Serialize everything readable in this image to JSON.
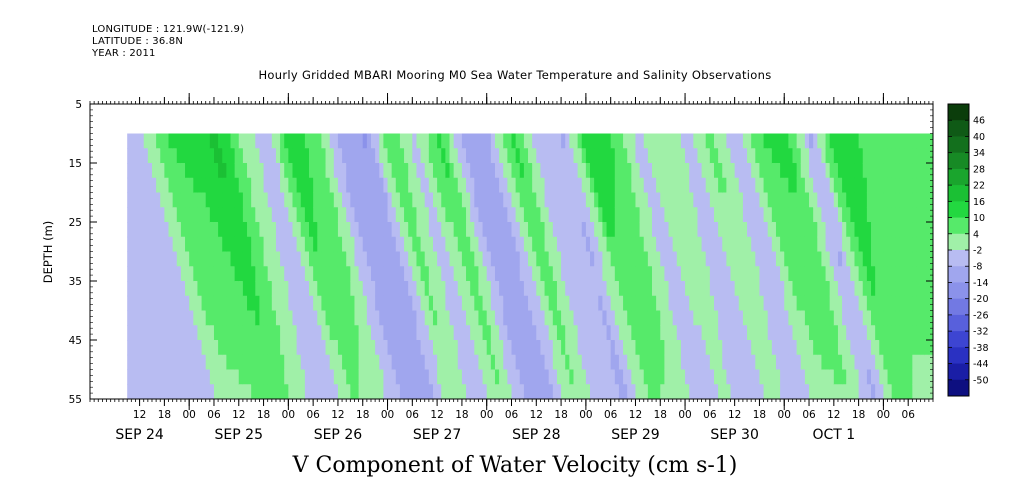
{
  "header": {
    "longitude": "LONGITUDE : 121.9W(-121.9)",
    "latitude": "LATITUDE : 36.8N",
    "year": "YEAR : 2011"
  },
  "chart_data": {
    "type": "heatmap",
    "title": "Hourly Gridded MBARI Mooring M0 Sea Water Temperature and Salinity Observations",
    "xlabel": "V Component of Water Velocity (cm s-1)",
    "ylabel": "DEPTH (m)",
    "ylim": [
      55,
      5
    ],
    "y_ticks": [
      5,
      15,
      25,
      35,
      45,
      55
    ],
    "x_hour_ticks": [
      "12",
      "18",
      "00",
      "06",
      "12",
      "18",
      "00",
      "06",
      "12",
      "18",
      "00",
      "06",
      "12",
      "18",
      "00",
      "06",
      "12",
      "18",
      "00",
      "06",
      "12",
      "18",
      "00",
      "06",
      "12",
      "18",
      "00",
      "06",
      "12",
      "18",
      "00",
      "06"
    ],
    "x_day_labels": [
      "SEP 24",
      "SEP 25",
      "SEP 26",
      "SEP 27",
      "SEP 28",
      "SEP 29",
      "SEP 30",
      "OCT  1"
    ],
    "data_depth_range": [
      10,
      55
    ],
    "colorbar_levels": [
      48,
      46,
      40,
      34,
      28,
      22,
      16,
      10,
      4,
      -2,
      -8,
      -14,
      -20,
      -26,
      -32,
      -38,
      -44,
      -50
    ],
    "colorbar_labels": [
      "46",
      "40",
      "34",
      "28",
      "22",
      "16",
      "10",
      "4",
      "-2",
      "-8",
      "-14",
      "-20",
      "-26",
      "-32",
      "-38",
      "-44",
      "-50"
    ],
    "colorbar_colors": [
      "#0b3d0b",
      "#0f5a16",
      "#13701d",
      "#178a25",
      "#1aa52d",
      "#1bc034",
      "#22d840",
      "#56ea6a",
      "#a0f0a8",
      "#b8bcf2",
      "#a0a6ee",
      "#8b92ea",
      "#7279e3",
      "#5860dc",
      "#3d45d2",
      "#2a31c2",
      "#1a1ea6",
      "#0d0f80"
    ],
    "velocity_bands": [
      {
        "hour": 12,
        "v": -4
      },
      {
        "hour": 18,
        "v": 10
      },
      {
        "hour": 24,
        "v": 12
      },
      {
        "hour": 30,
        "v": 18
      },
      {
        "hour": 36,
        "v": 4
      },
      {
        "hour": 42,
        "v": -6
      },
      {
        "hour": 48,
        "v": 14
      },
      {
        "hour": 54,
        "v": 8
      },
      {
        "hour": 60,
        "v": -10
      },
      {
        "hour": 66,
        "v": -14
      },
      {
        "hour": 72,
        "v": 10
      },
      {
        "hour": 78,
        "v": -4
      },
      {
        "hour": 84,
        "v": 12
      },
      {
        "hour": 90,
        "v": -10
      },
      {
        "hour": 96,
        "v": -8
      },
      {
        "hour": 102,
        "v": 12
      },
      {
        "hour": 108,
        "v": -6
      },
      {
        "hour": 114,
        "v": -8
      },
      {
        "hour": 120,
        "v": 14
      },
      {
        "hour": 126,
        "v": 10
      },
      {
        "hour": 132,
        "v": -4
      },
      {
        "hour": 138,
        "v": 4
      },
      {
        "hour": 144,
        "v": -4
      },
      {
        "hour": 150,
        "v": 6
      },
      {
        "hour": 156,
        "v": -6
      },
      {
        "hour": 162,
        "v": 10
      },
      {
        "hour": 168,
        "v": 12
      },
      {
        "hour": 174,
        "v": -8
      },
      {
        "hour": 180,
        "v": 16
      },
      {
        "hour": 186,
        "v": 10
      }
    ]
  }
}
